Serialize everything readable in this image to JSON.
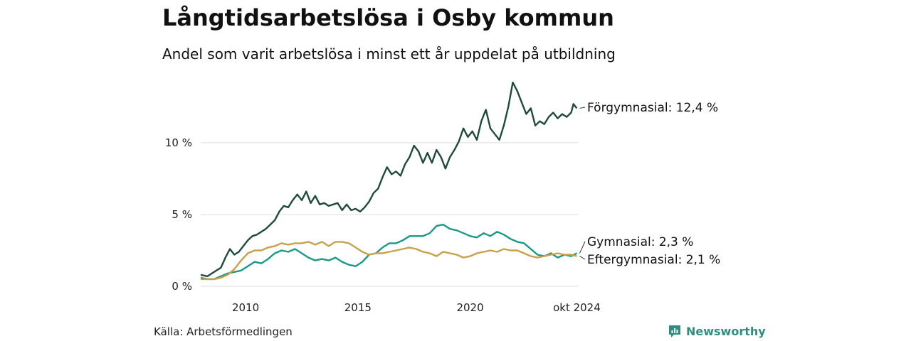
{
  "header": {
    "title": "Långtidsarbetslösa i Osby kommun",
    "subtitle": "Andel som varit arbetslösa i minst ett år uppdelat på utbildning"
  },
  "footer": {
    "source": "Källa: Arbetsförmedlingen",
    "brand": "Newsworthy"
  },
  "colors": {
    "forgymnasial": "#1f4a3c",
    "gymnasial": "#1a9985",
    "eftergymnasial": "#c9a04c",
    "grid": "#dddddd",
    "brand": "#2f8f7f"
  },
  "chart_data": {
    "type": "line",
    "title": "Långtidsarbetslösa i Osby kommun",
    "subtitle": "Andel som varit arbetslösa i minst ett år uppdelat på utbildning",
    "xlabel": "",
    "ylabel": "",
    "xlim": [
      2008.0,
      2024.8
    ],
    "ylim": [
      0,
      14.5
    ],
    "grid": true,
    "y_ticks": [
      {
        "value": 0,
        "label": "0 %"
      },
      {
        "value": 5,
        "label": "5 %"
      },
      {
        "value": 10,
        "label": "10 %"
      }
    ],
    "x_ticks": [
      {
        "value": 2010,
        "label": "2010"
      },
      {
        "value": 2015,
        "label": "2015"
      },
      {
        "value": 2020,
        "label": "2020"
      },
      {
        "value": 2024.75,
        "label": "okt 2024"
      }
    ],
    "series": [
      {
        "name": "Förgymnasial",
        "end_label": "Förgymnasial: 12,4 %",
        "color": "#1f4a3c",
        "points": [
          [
            2008.0,
            0.8
          ],
          [
            2008.3,
            0.7
          ],
          [
            2008.6,
            1.0
          ],
          [
            2008.9,
            1.3
          ],
          [
            2009.1,
            2.0
          ],
          [
            2009.3,
            2.6
          ],
          [
            2009.5,
            2.2
          ],
          [
            2009.7,
            2.4
          ],
          [
            2009.9,
            2.8
          ],
          [
            2010.1,
            3.2
          ],
          [
            2010.3,
            3.5
          ],
          [
            2010.5,
            3.6
          ],
          [
            2010.7,
            3.8
          ],
          [
            2010.9,
            4.0
          ],
          [
            2011.1,
            4.3
          ],
          [
            2011.3,
            4.6
          ],
          [
            2011.5,
            5.2
          ],
          [
            2011.7,
            5.6
          ],
          [
            2011.9,
            5.5
          ],
          [
            2012.1,
            6.0
          ],
          [
            2012.3,
            6.4
          ],
          [
            2012.5,
            6.0
          ],
          [
            2012.7,
            6.6
          ],
          [
            2012.9,
            5.8
          ],
          [
            2013.1,
            6.3
          ],
          [
            2013.3,
            5.7
          ],
          [
            2013.5,
            5.8
          ],
          [
            2013.7,
            5.6
          ],
          [
            2013.9,
            5.7
          ],
          [
            2014.1,
            5.8
          ],
          [
            2014.3,
            5.3
          ],
          [
            2014.5,
            5.7
          ],
          [
            2014.7,
            5.3
          ],
          [
            2014.9,
            5.4
          ],
          [
            2015.1,
            5.2
          ],
          [
            2015.3,
            5.5
          ],
          [
            2015.5,
            5.9
          ],
          [
            2015.7,
            6.5
          ],
          [
            2015.9,
            6.8
          ],
          [
            2016.1,
            7.6
          ],
          [
            2016.3,
            8.3
          ],
          [
            2016.5,
            7.8
          ],
          [
            2016.7,
            8.0
          ],
          [
            2016.9,
            7.7
          ],
          [
            2017.1,
            8.5
          ],
          [
            2017.3,
            9.0
          ],
          [
            2017.5,
            9.8
          ],
          [
            2017.7,
            9.4
          ],
          [
            2017.9,
            8.6
          ],
          [
            2018.1,
            9.3
          ],
          [
            2018.3,
            8.6
          ],
          [
            2018.5,
            9.5
          ],
          [
            2018.7,
            9.0
          ],
          [
            2018.9,
            8.2
          ],
          [
            2019.1,
            9.0
          ],
          [
            2019.3,
            9.5
          ],
          [
            2019.5,
            10.1
          ],
          [
            2019.7,
            11.0
          ],
          [
            2019.9,
            10.4
          ],
          [
            2020.1,
            10.8
          ],
          [
            2020.3,
            10.2
          ],
          [
            2020.5,
            11.5
          ],
          [
            2020.7,
            12.3
          ],
          [
            2020.9,
            11.0
          ],
          [
            2021.1,
            10.6
          ],
          [
            2021.3,
            10.2
          ],
          [
            2021.5,
            11.2
          ],
          [
            2021.7,
            12.5
          ],
          [
            2021.9,
            14.2
          ],
          [
            2022.1,
            13.6
          ],
          [
            2022.3,
            12.8
          ],
          [
            2022.5,
            12.0
          ],
          [
            2022.7,
            12.4
          ],
          [
            2022.9,
            11.2
          ],
          [
            2023.1,
            11.5
          ],
          [
            2023.3,
            11.3
          ],
          [
            2023.5,
            11.8
          ],
          [
            2023.7,
            12.1
          ],
          [
            2023.9,
            11.7
          ],
          [
            2024.1,
            12.0
          ],
          [
            2024.3,
            11.8
          ],
          [
            2024.5,
            12.1
          ],
          [
            2024.6,
            12.7
          ],
          [
            2024.75,
            12.4
          ]
        ]
      },
      {
        "name": "Gymnasial",
        "end_label": "Gymnasial:  2,3 %",
        "color": "#1a9985",
        "points": [
          [
            2008.0,
            0.6
          ],
          [
            2008.3,
            0.5
          ],
          [
            2008.6,
            0.5
          ],
          [
            2008.9,
            0.7
          ],
          [
            2009.2,
            0.9
          ],
          [
            2009.5,
            1.0
          ],
          [
            2009.8,
            1.1
          ],
          [
            2010.1,
            1.4
          ],
          [
            2010.4,
            1.7
          ],
          [
            2010.7,
            1.6
          ],
          [
            2011.0,
            1.9
          ],
          [
            2011.3,
            2.3
          ],
          [
            2011.6,
            2.5
          ],
          [
            2011.9,
            2.4
          ],
          [
            2012.2,
            2.6
          ],
          [
            2012.5,
            2.3
          ],
          [
            2012.8,
            2.0
          ],
          [
            2013.1,
            1.8
          ],
          [
            2013.4,
            1.9
          ],
          [
            2013.7,
            1.8
          ],
          [
            2014.0,
            2.0
          ],
          [
            2014.3,
            1.7
          ],
          [
            2014.6,
            1.5
          ],
          [
            2014.9,
            1.4
          ],
          [
            2015.2,
            1.7
          ],
          [
            2015.5,
            2.2
          ],
          [
            2015.8,
            2.3
          ],
          [
            2016.1,
            2.7
          ],
          [
            2016.4,
            3.0
          ],
          [
            2016.7,
            3.0
          ],
          [
            2017.0,
            3.2
          ],
          [
            2017.3,
            3.5
          ],
          [
            2017.6,
            3.5
          ],
          [
            2017.9,
            3.5
          ],
          [
            2018.2,
            3.7
          ],
          [
            2018.5,
            4.2
          ],
          [
            2018.8,
            4.3
          ],
          [
            2019.1,
            4.0
          ],
          [
            2019.4,
            3.9
          ],
          [
            2019.7,
            3.7
          ],
          [
            2020.0,
            3.5
          ],
          [
            2020.3,
            3.4
          ],
          [
            2020.6,
            3.7
          ],
          [
            2020.9,
            3.5
          ],
          [
            2021.2,
            3.8
          ],
          [
            2021.5,
            3.6
          ],
          [
            2021.8,
            3.3
          ],
          [
            2022.1,
            3.1
          ],
          [
            2022.4,
            3.0
          ],
          [
            2022.7,
            2.6
          ],
          [
            2023.0,
            2.2
          ],
          [
            2023.3,
            2.1
          ],
          [
            2023.6,
            2.3
          ],
          [
            2023.9,
            2.0
          ],
          [
            2024.2,
            2.2
          ],
          [
            2024.5,
            2.1
          ],
          [
            2024.75,
            2.3
          ]
        ]
      },
      {
        "name": "Eftergymnasial",
        "end_label": "Eftergymnasial:  2,1 %",
        "color": "#c9a04c",
        "points": [
          [
            2008.0,
            0.5
          ],
          [
            2008.3,
            0.5
          ],
          [
            2008.6,
            0.5
          ],
          [
            2008.9,
            0.6
          ],
          [
            2009.2,
            0.8
          ],
          [
            2009.5,
            1.2
          ],
          [
            2009.8,
            1.8
          ],
          [
            2010.1,
            2.3
          ],
          [
            2010.4,
            2.5
          ],
          [
            2010.7,
            2.5
          ],
          [
            2011.0,
            2.7
          ],
          [
            2011.3,
            2.8
          ],
          [
            2011.6,
            3.0
          ],
          [
            2011.9,
            2.9
          ],
          [
            2012.2,
            3.0
          ],
          [
            2012.5,
            3.0
          ],
          [
            2012.8,
            3.1
          ],
          [
            2013.1,
            2.9
          ],
          [
            2013.4,
            3.1
          ],
          [
            2013.7,
            2.8
          ],
          [
            2014.0,
            3.1
          ],
          [
            2014.3,
            3.1
          ],
          [
            2014.6,
            3.0
          ],
          [
            2014.9,
            2.7
          ],
          [
            2015.2,
            2.4
          ],
          [
            2015.5,
            2.2
          ],
          [
            2015.8,
            2.3
          ],
          [
            2016.1,
            2.3
          ],
          [
            2016.4,
            2.4
          ],
          [
            2016.7,
            2.5
          ],
          [
            2017.0,
            2.6
          ],
          [
            2017.3,
            2.7
          ],
          [
            2017.6,
            2.6
          ],
          [
            2017.9,
            2.4
          ],
          [
            2018.2,
            2.3
          ],
          [
            2018.5,
            2.1
          ],
          [
            2018.8,
            2.4
          ],
          [
            2019.1,
            2.3
          ],
          [
            2019.4,
            2.2
          ],
          [
            2019.7,
            2.0
          ],
          [
            2020.0,
            2.1
          ],
          [
            2020.3,
            2.3
          ],
          [
            2020.6,
            2.4
          ],
          [
            2020.9,
            2.5
          ],
          [
            2021.2,
            2.4
          ],
          [
            2021.5,
            2.6
          ],
          [
            2021.8,
            2.5
          ],
          [
            2022.1,
            2.5
          ],
          [
            2022.4,
            2.3
          ],
          [
            2022.7,
            2.1
          ],
          [
            2023.0,
            2.0
          ],
          [
            2023.3,
            2.1
          ],
          [
            2023.6,
            2.2
          ],
          [
            2023.9,
            2.3
          ],
          [
            2024.2,
            2.2
          ],
          [
            2024.5,
            2.2
          ],
          [
            2024.75,
            2.1
          ]
        ]
      }
    ]
  }
}
